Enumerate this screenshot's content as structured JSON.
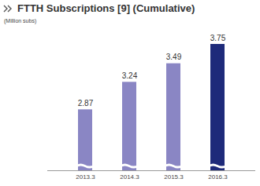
{
  "chart_data": {
    "type": "bar",
    "title": "FTTH Subscriptions [9] (Cumulative)",
    "subtitle": "(Million subs)",
    "categories": [
      "2013.3",
      "2014.3",
      "2015.3",
      "2016.3"
    ],
    "values": [
      2.87,
      3.24,
      3.49,
      3.75
    ],
    "colors": [
      "#8a86c4",
      "#8a86c4",
      "#8a86c4",
      "#1e2a7a"
    ],
    "ylim": [
      2.05,
      3.75
    ],
    "data_labels": true,
    "tick_labels": "x",
    "grid": false
  }
}
